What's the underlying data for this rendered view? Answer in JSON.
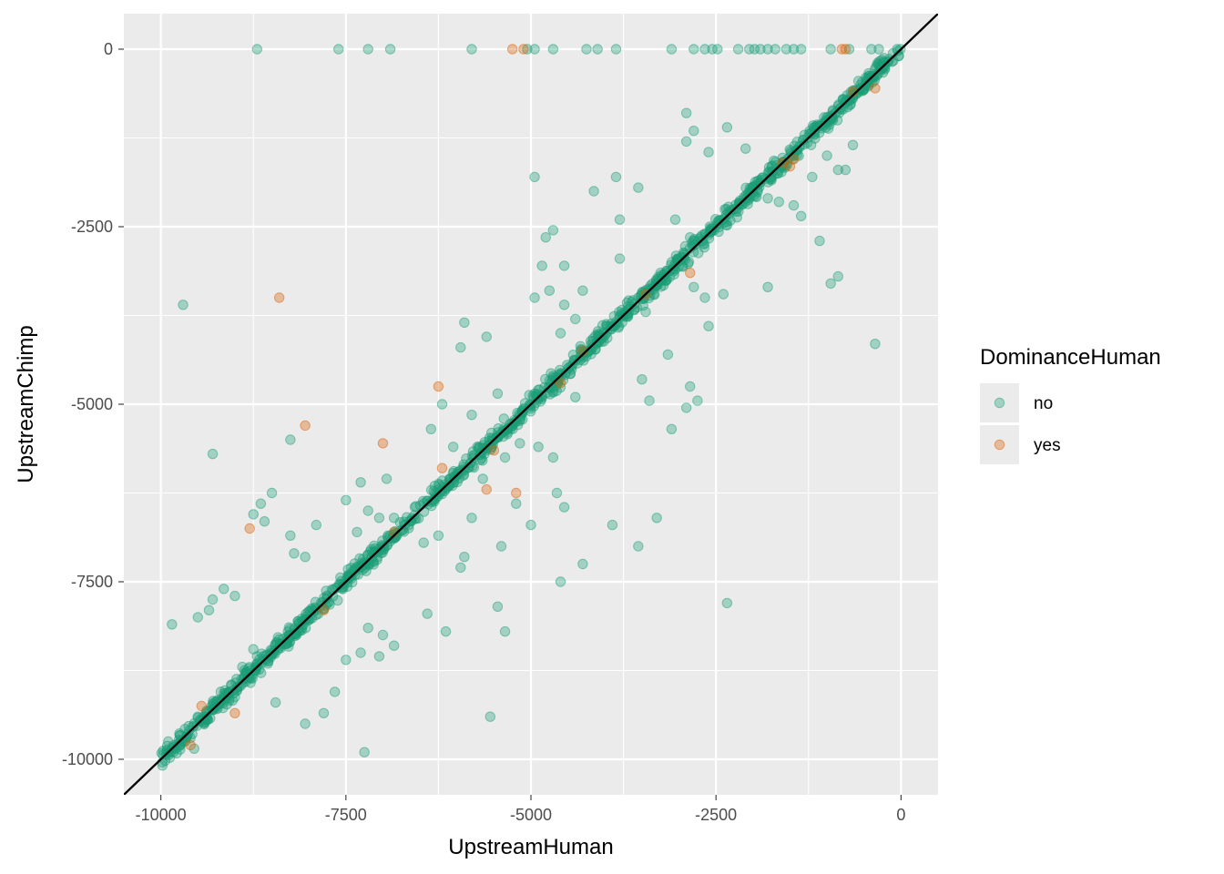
{
  "chart_data": {
    "type": "scatter",
    "title": "",
    "xlabel": "UpstreamHuman",
    "ylabel": "UpstreamChimp",
    "xlim": [
      -10500,
      500
    ],
    "ylim": [
      -10500,
      500
    ],
    "x_ticks": [
      {
        "value": -10000,
        "label": "-10000"
      },
      {
        "value": -7500,
        "label": "-7500"
      },
      {
        "value": -5000,
        "label": "-5000"
      },
      {
        "value": -2500,
        "label": "-2500"
      },
      {
        "value": 0,
        "label": "0"
      }
    ],
    "y_ticks": [
      {
        "value": 0,
        "label": "0"
      },
      {
        "value": -2500,
        "label": "-2500"
      },
      {
        "value": -5000,
        "label": "-5000"
      },
      {
        "value": -7500,
        "label": "-7500"
      },
      {
        "value": -10000,
        "label": "-10000"
      }
    ],
    "reference_line": {
      "type": "identity",
      "slope": 1,
      "intercept": 0,
      "color": "#000000"
    },
    "panel_background": "#ebebeb",
    "grid": true,
    "legend": {
      "title": "DominanceHuman",
      "position": "right",
      "entries": [
        {
          "label": "no",
          "color": "#1b9e77"
        },
        {
          "label": "yes",
          "color": "#d95f02"
        }
      ]
    },
    "point_alpha": 0.35,
    "series": [
      {
        "name": "no",
        "color": "#1b9e77",
        "points": [
          [
            -8700,
            0
          ],
          [
            -7600,
            0
          ],
          [
            -7200,
            0
          ],
          [
            -6900,
            0
          ],
          [
            -5800,
            0
          ],
          [
            -5050,
            0
          ],
          [
            -4950,
            0
          ],
          [
            -4700,
            0
          ],
          [
            -4250,
            0
          ],
          [
            -4100,
            0
          ],
          [
            -3850,
            0
          ],
          [
            -3100,
            0
          ],
          [
            -2800,
            0
          ],
          [
            -2650,
            0
          ],
          [
            -2550,
            0
          ],
          [
            -2480,
            0
          ],
          [
            -2200,
            0
          ],
          [
            -2050,
            0
          ],
          [
            -1980,
            0
          ],
          [
            -1900,
            0
          ],
          [
            -1800,
            0
          ],
          [
            -1700,
            0
          ],
          [
            -1550,
            0
          ],
          [
            -1450,
            0
          ],
          [
            -1350,
            0
          ],
          [
            -950,
            0
          ],
          [
            -700,
            0
          ],
          [
            -400,
            0
          ],
          [
            -300,
            0
          ],
          [
            -9700,
            -3600
          ],
          [
            -9300,
            -5700
          ],
          [
            -9850,
            -8100
          ],
          [
            -8750,
            -6550
          ],
          [
            -8650,
            -6400
          ],
          [
            -8500,
            -6250
          ],
          [
            -8600,
            -6650
          ],
          [
            -8250,
            -5500
          ],
          [
            -7900,
            -6700
          ],
          [
            -8200,
            -7100
          ],
          [
            -8050,
            -7150
          ],
          [
            -8250,
            -6850
          ],
          [
            -7500,
            -6350
          ],
          [
            -7300,
            -6100
          ],
          [
            -7200,
            -6500
          ],
          [
            -6950,
            -6050
          ],
          [
            -7050,
            -6600
          ],
          [
            -7350,
            -6800
          ],
          [
            -6300,
            -6150
          ],
          [
            -6100,
            -6050
          ],
          [
            -5900,
            -3850
          ],
          [
            -5950,
            -4200
          ],
          [
            -5600,
            -4050
          ],
          [
            -6200,
            -5000
          ],
          [
            -6350,
            -5350
          ],
          [
            -6050,
            -5600
          ],
          [
            -5800,
            -5150
          ],
          [
            -5450,
            -4850
          ],
          [
            -5250,
            -5300
          ],
          [
            -5150,
            -5550
          ],
          [
            -5350,
            -5750
          ],
          [
            -5650,
            -6050
          ],
          [
            -5800,
            -6600
          ],
          [
            -5900,
            -7150
          ],
          [
            -5950,
            -7300
          ],
          [
            -6250,
            -6850
          ],
          [
            -6450,
            -6950
          ],
          [
            -6650,
            -6700
          ],
          [
            -6850,
            -6600
          ],
          [
            -5450,
            -7850
          ],
          [
            -5350,
            -8200
          ],
          [
            -5550,
            -9400
          ],
          [
            -6150,
            -8200
          ],
          [
            -6400,
            -7950
          ],
          [
            -6850,
            -8400
          ],
          [
            -7000,
            -8250
          ],
          [
            -7200,
            -8150
          ],
          [
            -7050,
            -8550
          ],
          [
            -7300,
            -8500
          ],
          [
            -7500,
            -8600
          ],
          [
            -7650,
            -9050
          ],
          [
            -7800,
            -9350
          ],
          [
            -8050,
            -9500
          ],
          [
            -8450,
            -9200
          ],
          [
            -7250,
            -9900
          ],
          [
            -9300,
            -7750
          ],
          [
            -9150,
            -7600
          ],
          [
            -9500,
            -8000
          ],
          [
            -9350,
            -7900
          ],
          [
            -9000,
            -7700
          ],
          [
            -8750,
            -8450
          ],
          [
            -8700,
            -8550
          ],
          [
            -8900,
            -8700
          ],
          [
            -9050,
            -8950
          ],
          [
            -9300,
            -9300
          ],
          [
            -9500,
            -9400
          ],
          [
            -9600,
            -9700
          ],
          [
            -9750,
            -9800
          ],
          [
            -9900,
            -9750
          ],
          [
            -9550,
            -9850
          ],
          [
            -4950,
            -1800
          ],
          [
            -4700,
            -2550
          ],
          [
            -4800,
            -2650
          ],
          [
            -4850,
            -3050
          ],
          [
            -4550,
            -3050
          ],
          [
            -4750,
            -3400
          ],
          [
            -4950,
            -3500
          ],
          [
            -4300,
            -3400
          ],
          [
            -4550,
            -3600
          ],
          [
            -4150,
            -2000
          ],
          [
            -3850,
            -1800
          ],
          [
            -3800,
            -2400
          ],
          [
            -3550,
            -1950
          ],
          [
            -3800,
            -2950
          ],
          [
            -3450,
            -3700
          ],
          [
            -3100,
            -3000
          ],
          [
            -2950,
            -3050
          ],
          [
            -3250,
            -3150
          ],
          [
            -3050,
            -2400
          ],
          [
            -2850,
            -2650
          ],
          [
            -2900,
            -1300
          ],
          [
            -2900,
            -900
          ],
          [
            -2800,
            -1150
          ],
          [
            -2600,
            -1450
          ],
          [
            -2350,
            -1100
          ],
          [
            -2100,
            -1400
          ],
          [
            -2050,
            -2100
          ],
          [
            -1800,
            -2100
          ],
          [
            -1650,
            -2150
          ],
          [
            -1450,
            -2200
          ],
          [
            -1350,
            -2350
          ],
          [
            -1200,
            -1800
          ],
          [
            -1000,
            -1500
          ],
          [
            -850,
            -1700
          ],
          [
            -750,
            -1700
          ],
          [
            -650,
            -1350
          ],
          [
            -1100,
            -2700
          ],
          [
            -950,
            -3300
          ],
          [
            -850,
            -3200
          ],
          [
            -350,
            -4150
          ],
          [
            -2800,
            -3350
          ],
          [
            -2650,
            -3500
          ],
          [
            -2600,
            -3900
          ],
          [
            -2400,
            -3450
          ],
          [
            -1800,
            -3350
          ],
          [
            -3300,
            -6600
          ],
          [
            -3550,
            -7000
          ],
          [
            -3900,
            -6700
          ],
          [
            -4300,
            -7250
          ],
          [
            -4600,
            -7500
          ],
          [
            -4550,
            -6450
          ],
          [
            -4900,
            -5600
          ],
          [
            -4700,
            -5750
          ],
          [
            -4650,
            -6250
          ],
          [
            -5000,
            -6700
          ],
          [
            -5200,
            -6400
          ],
          [
            -5400,
            -7000
          ],
          [
            -3150,
            -4300
          ],
          [
            -3100,
            -5350
          ],
          [
            -2900,
            -5050
          ],
          [
            -2850,
            -4750
          ],
          [
            -2750,
            -4950
          ],
          [
            -2350,
            -7800
          ],
          [
            -3400,
            -4950
          ],
          [
            -3500,
            -4650
          ],
          [
            -4400,
            -4900
          ],
          [
            -4700,
            -4600
          ],
          [
            -4600,
            -4000
          ],
          [
            -4400,
            -3800
          ]
        ]
      },
      {
        "name": "yes",
        "color": "#d95f02",
        "points": [
          [
            -5250,
            0
          ],
          [
            -5100,
            0
          ],
          [
            -800,
            0
          ],
          [
            -750,
            0
          ],
          [
            -8400,
            -3500
          ],
          [
            -8050,
            -5300
          ],
          [
            -7000,
            -5550
          ],
          [
            -8800,
            -6750
          ],
          [
            -6250,
            -4750
          ],
          [
            -6200,
            -5900
          ],
          [
            -5600,
            -6200
          ],
          [
            -5200,
            -6250
          ],
          [
            -4300,
            -4250
          ],
          [
            -2850,
            -3150
          ],
          [
            -1600,
            -1600
          ],
          [
            -1450,
            -1550
          ],
          [
            -1500,
            -1650
          ],
          [
            -3450,
            -3450
          ],
          [
            -9450,
            -9250
          ],
          [
            -9000,
            -9350
          ],
          [
            -9600,
            -9800
          ],
          [
            -7800,
            -7900
          ],
          [
            -6850,
            -6800
          ],
          [
            -650,
            -600
          ],
          [
            -350,
            -550
          ],
          [
            -5500,
            -5650
          ],
          [
            -4600,
            -4700
          ]
        ]
      }
    ],
    "dense_diagonal": {
      "series": "no",
      "x_range": [
        -10000,
        0
      ],
      "description_count": 1100,
      "typical_spread": 90
    }
  }
}
